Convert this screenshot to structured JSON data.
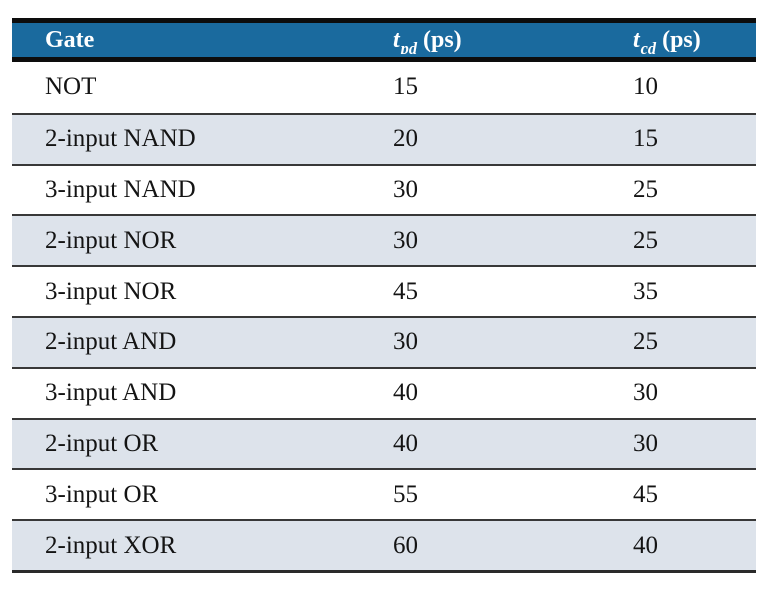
{
  "colors": {
    "header_bg": "#1a6a9e",
    "header_text": "#ffffff",
    "stripe_bg": "#dde3eb",
    "body_text": "#141414",
    "rule_black": "#0d0d0d"
  },
  "header": {
    "gate": "Gate",
    "tpd_symbol": "t",
    "tpd_sub": "pd",
    "tpd_unit": "(ps)",
    "tcd_symbol": "t",
    "tcd_sub": "cd",
    "tcd_unit": "(ps)"
  },
  "rows": [
    {
      "gate": "NOT",
      "tpd": "15",
      "tcd": "10"
    },
    {
      "gate": "2-input NAND",
      "tpd": "20",
      "tcd": "15"
    },
    {
      "gate": "3-input NAND",
      "tpd": "30",
      "tcd": "25"
    },
    {
      "gate": "2-input NOR",
      "tpd": "30",
      "tcd": "25"
    },
    {
      "gate": "3-input NOR",
      "tpd": "45",
      "tcd": "35"
    },
    {
      "gate": "2-input AND",
      "tpd": "30",
      "tcd": "25"
    },
    {
      "gate": "3-input AND",
      "tpd": "40",
      "tcd": "30"
    },
    {
      "gate": "2-input OR",
      "tpd": "40",
      "tcd": "30"
    },
    {
      "gate": "3-input OR",
      "tpd": "55",
      "tcd": "45"
    },
    {
      "gate": "2-input XOR",
      "tpd": "60",
      "tcd": "40"
    }
  ]
}
